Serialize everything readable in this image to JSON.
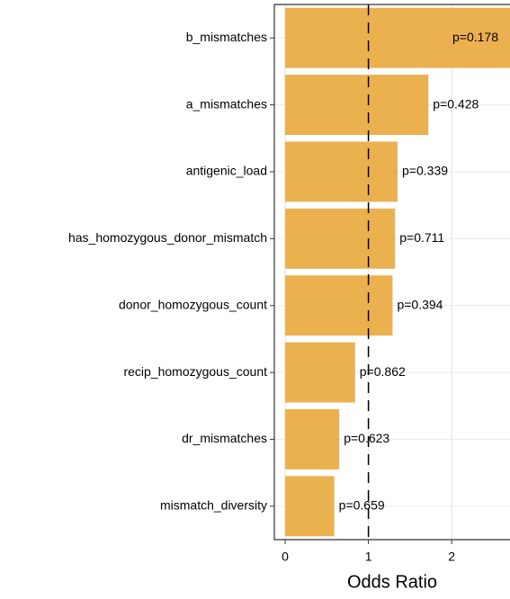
{
  "chart_data": {
    "type": "bar",
    "orientation": "horizontal",
    "x_label": "Odds Ratio",
    "categories": [
      "b_mismatches",
      "a_mismatches",
      "antigenic_load",
      "has_homozygous_donor_mismatch",
      "donor_homozygous_count",
      "recip_homozygous_count",
      "dr_mismatches",
      "mismatch_diversity"
    ],
    "values": [
      2.7,
      1.72,
      1.35,
      1.32,
      1.29,
      0.84,
      0.65,
      0.59
    ],
    "p_labels": [
      "p=0.178",
      "p=0.428",
      "p=0.339",
      "p=0.711",
      "p=0.394",
      "p=0.862",
      "p=0.623",
      "p=0.659"
    ],
    "color": "#e9a83c",
    "xlim": [
      -0.13,
      2.7
    ],
    "xticks": [
      0,
      1,
      2
    ],
    "reference_line": 1,
    "grid": true
  }
}
